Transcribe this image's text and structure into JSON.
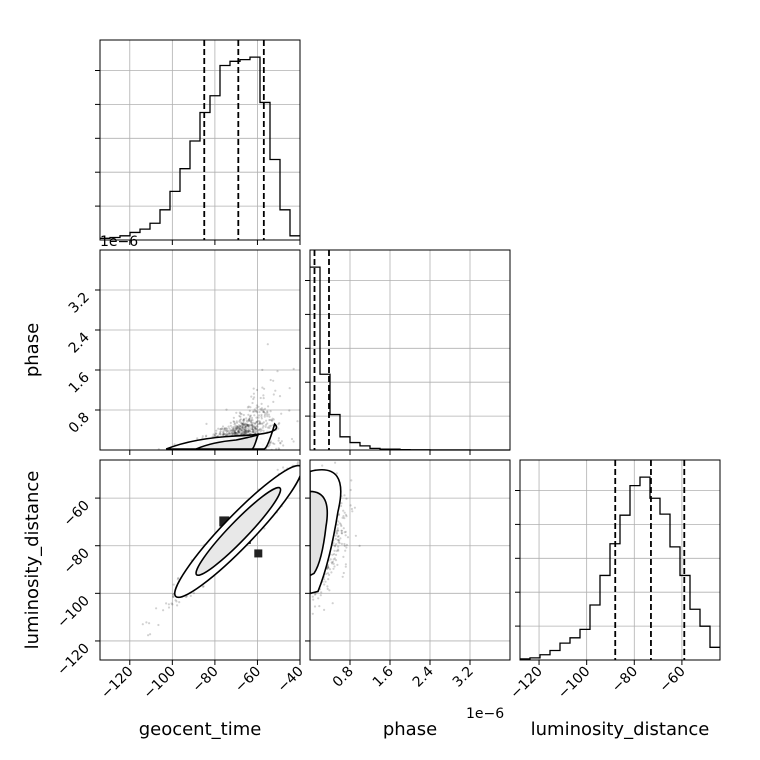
{
  "chart_data": {
    "type": "corner",
    "parameters": [
      "geocent_time",
      "phase",
      "luminosity_distance"
    ],
    "xlabels": [
      "geocent_time",
      "phase",
      "luminosity_distance"
    ],
    "ylabels": [
      "",
      "phase",
      "luminosity_distance"
    ],
    "ranges": {
      "geocent_time": [
        -134,
        -40
      ],
      "phase": [
        0,
        4.0
      ],
      "luminosity_distance": [
        -128,
        -44
      ]
    },
    "ticks": {
      "geocent_time": [
        -120,
        -100,
        -80,
        -60,
        -40
      ],
      "phase": [
        0.8,
        1.6,
        2.4,
        3.2
      ],
      "luminosity_distance": [
        -120,
        -100,
        -80,
        -60
      ]
    },
    "tick_labels": {
      "geocent_time": [
        "−120",
        "−100",
        "−80",
        "−60",
        "−40"
      ],
      "phase": [
        "0.8",
        "1.6",
        "2.4",
        "3.2"
      ],
      "luminosity_distance": [
        "−120",
        "−100",
        "−80",
        "−60"
      ]
    },
    "offset_text": "1e−6",
    "grid": true,
    "histograms": {
      "geocent_time": {
        "bin_edges": [
          -134,
          -129.3,
          -124.6,
          -119.9,
          -115.2,
          -110.5,
          -105.8,
          -101.1,
          -96.4,
          -91.7,
          -87.0,
          -82.3,
          -77.6,
          -72.9,
          -68.2,
          -63.5,
          -58.8,
          -54.1,
          -49.4,
          -44.7,
          -40
        ],
        "counts": [
          2,
          3,
          5,
          9,
          13,
          20,
          36,
          58,
          85,
          118,
          152,
          172,
          208,
          213,
          215,
          218,
          164,
          96,
          36,
          5
        ],
        "quantiles": [
          -85,
          -69,
          -57
        ]
      },
      "phase": {
        "bin_edges": [
          0,
          0.2,
          0.4,
          0.6,
          0.8,
          1.0,
          1.2,
          1.4,
          1.6,
          1.8,
          2.0,
          2.2,
          2.4,
          2.6,
          2.8,
          3.0,
          3.2,
          3.4,
          3.6,
          3.8,
          4.0
        ],
        "counts": [
          222,
          92,
          43,
          16,
          9,
          5,
          2,
          1,
          1,
          0.5,
          0.3,
          0.2,
          0.1,
          0.1,
          0.1,
          0.05,
          0,
          0,
          0,
          0
        ],
        "quantiles": [
          0.09,
          0.38
        ]
      },
      "luminosity_distance": {
        "bin_edges": [
          -128,
          -123.8,
          -119.6,
          -115.4,
          -111.2,
          -107.0,
          -102.8,
          -98.6,
          -94.4,
          -90.2,
          -86.0,
          -81.8,
          -77.6,
          -73.4,
          -69.2,
          -65.0,
          -60.8,
          -56.6,
          -52.4,
          -48.2,
          -44
        ],
        "counts": [
          1,
          2,
          5,
          9,
          16,
          21,
          29,
          52,
          80,
          110,
          137,
          165,
          173,
          153,
          138,
          107,
          80,
          48,
          32,
          12
        ],
        "quantiles": [
          -88,
          -73,
          -59
        ]
      }
    },
    "correlations": [
      {
        "x": "geocent_time",
        "y": "phase",
        "rho": 0.5,
        "center": [
          -70,
          0.05
        ],
        "spread": [
          10,
          0.45
        ]
      },
      {
        "x": "geocent_time",
        "y": "luminosity_distance",
        "rho": 0.97,
        "center": [
          -69,
          -74
        ],
        "spread": [
          14,
          13
        ]
      },
      {
        "x": "phase",
        "y": "luminosity_distance",
        "rho": 0.6,
        "center": [
          0.1,
          -74
        ],
        "spread": [
          0.5,
          13
        ]
      }
    ]
  }
}
